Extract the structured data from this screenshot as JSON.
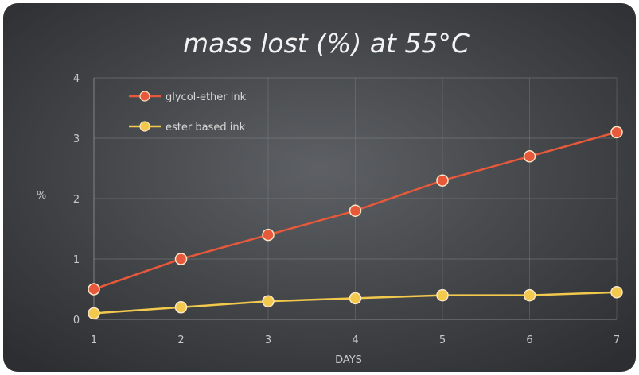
{
  "chart_data": {
    "type": "line",
    "title": "mass lost (%) at 55°C",
    "xlabel": "DAYS",
    "ylabel": "%",
    "x": [
      1,
      2,
      3,
      4,
      5,
      6,
      7
    ],
    "xlim": [
      1,
      7
    ],
    "ylim": [
      0,
      4
    ],
    "yticks": [
      0,
      1,
      2,
      3,
      4
    ],
    "grid": true,
    "legend_position": "top-left",
    "series": [
      {
        "name": "glycol-ether ink",
        "values": [
          0.5,
          1.0,
          1.4,
          1.8,
          2.3,
          2.7,
          3.1
        ],
        "color": "#e8583a"
      },
      {
        "name": "ester based ink",
        "values": [
          0.1,
          0.2,
          0.3,
          0.35,
          0.4,
          0.4,
          0.45
        ],
        "color": "#f2c94c"
      }
    ]
  }
}
